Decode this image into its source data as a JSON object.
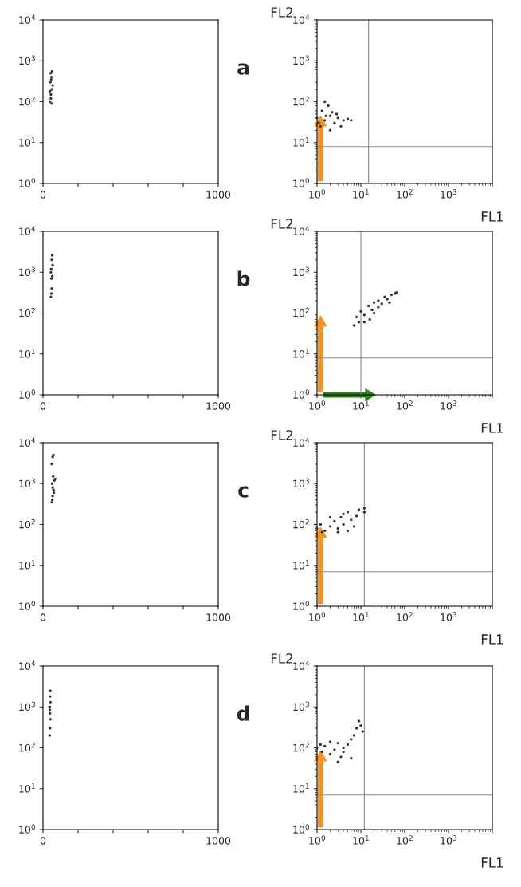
{
  "chart_data": [
    {
      "type": "scatter",
      "xlim": [
        0,
        1000
      ],
      "ylim": [
        1,
        10000
      ],
      "log": "y",
      "marker": "circle",
      "grid": false,
      "xticks": [
        0,
        {
          "value": 200,
          "label": null
        },
        {
          "value": 400,
          "label": null
        },
        {
          "value": 600,
          "label": null
        },
        {
          "value": 800,
          "label": null
        },
        1000
      ],
      "yticks": [
        {
          "value": 1,
          "label": "10$^{0}$"
        },
        {
          "value": 10,
          "label": "10$^{1}$"
        },
        {
          "value": 100,
          "label": "10$^{2}$"
        },
        {
          "value": 1000,
          "label": "10$^{3}$"
        },
        {
          "value": 10000,
          "label": "10$^{4}$"
        }
      ],
      "series": [
        {
          "color": "#2b3a3a",
          "x": [
            40,
            45,
            50,
            42,
            48,
            52,
            45,
            55,
            40,
            50,
            47,
            43
          ],
          "values": [
            100,
            150,
            200,
            300,
            400,
            550,
            120,
            250,
            180,
            90,
            350,
            500
          ]
        }
      ]
    },
    {
      "type": "scatter",
      "xlabel": "FL1",
      "ylabel": "FL2",
      "annotations": [
        "a"
      ],
      "xlim": [
        1,
        10000
      ],
      "ylim": [
        1,
        10000
      ],
      "log": "xy",
      "marker": "circle",
      "grid": false,
      "xticks": [
        {
          "value": 1,
          "label": "10$^{0}$"
        },
        {
          "value": 10,
          "label": "10$^{1}$"
        },
        {
          "value": 100,
          "label": "10$^{2}$"
        },
        {
          "value": 1000,
          "label": "10$^{3}$"
        },
        {
          "value": 10000,
          "label": null
        }
      ],
      "yticks": [
        {
          "value": 1,
          "label": "10$^{0}$"
        },
        {
          "value": 10,
          "label": "10$^{1}$"
        },
        {
          "value": 100,
          "label": "10$^{2}$"
        },
        {
          "value": 1000,
          "label": "10$^{3}$"
        },
        {
          "value": 10000,
          "label": "10$^{4}$"
        }
      ],
      "ref_lines": [
        {
          "axis": "x",
          "value": 15,
          "color": "#888888"
        },
        {
          "axis": "y",
          "value": 8,
          "color": "#888888"
        }
      ],
      "series": [
        {
          "color": "#2b3a3a",
          "x": [
            1,
            1.3,
            1.5,
            2,
            2.5,
            3,
            4,
            5,
            1.2,
            1.8,
            2.2,
            3.5,
            1.5,
            2,
            2.8,
            6,
            1.1,
            1.6
          ],
          "values": [
            40,
            60,
            35,
            45,
            30,
            40,
            35,
            38,
            25,
            80,
            55,
            25,
            100,
            20,
            50,
            35,
            30,
            45
          ]
        }
      ]
    },
    {
      "type": "scatter",
      "xlim": [
        0,
        1000
      ],
      "ylim": [
        1,
        10000
      ],
      "log": "y",
      "marker": "circle",
      "grid": false,
      "xticks": [
        0,
        {
          "value": 200,
          "label": null
        },
        {
          "value": 400,
          "label": null
        },
        {
          "value": 600,
          "label": null
        },
        {
          "value": 800,
          "label": null
        },
        1000
      ],
      "yticks": [
        {
          "value": 1,
          "label": "10$^{0}$"
        },
        {
          "value": 10,
          "label": "10$^{1}$"
        },
        {
          "value": 100,
          "label": "10$^{2}$"
        },
        {
          "value": 1000,
          "label": "10$^{3}$"
        },
        {
          "value": 10000,
          "label": "10$^{4}$"
        }
      ],
      "series": [
        {
          "color": "#2b3a3a",
          "x": [
            45,
            50,
            48,
            45,
            55,
            50,
            52,
            47,
            53,
            48
          ],
          "values": [
            250,
            400,
            700,
            1000,
            1500,
            2000,
            2600,
            1200,
            800,
            300
          ]
        }
      ]
    },
    {
      "type": "scatter",
      "xlabel": "FL1",
      "ylabel": "FL2",
      "annotations": [
        "b"
      ],
      "xlim": [
        1,
        10000
      ],
      "ylim": [
        1,
        10000
      ],
      "log": "xy",
      "marker": "circle",
      "grid": false,
      "xticks": [
        {
          "value": 1,
          "label": "10$^{0}$"
        },
        {
          "value": 10,
          "label": "10$^{1}$"
        },
        {
          "value": 100,
          "label": "10$^{2}$"
        },
        {
          "value": 1000,
          "label": "10$^{3}$"
        },
        {
          "value": 10000,
          "label": null
        }
      ],
      "yticks": [
        {
          "value": 1,
          "label": "10$^{0}$"
        },
        {
          "value": 10,
          "label": "10$^{1}$"
        },
        {
          "value": 100,
          "label": "10$^{2}$"
        },
        {
          "value": 1000,
          "label": "10$^{3}$"
        },
        {
          "value": 10000,
          "label": "10$^{4}$"
        }
      ],
      "ref_lines": [
        {
          "axis": "x",
          "value": 10,
          "color": "#888888"
        },
        {
          "axis": "y",
          "value": 8,
          "color": "#888888"
        }
      ],
      "series": [
        {
          "color": "#2b3a3a",
          "x": [
            7,
            8,
            10,
            12,
            15,
            18,
            20,
            25,
            30,
            35,
            40,
            50,
            60,
            65,
            20,
            12,
            16,
            25,
            45,
            9
          ],
          "values": [
            50,
            80,
            110,
            90,
            150,
            120,
            180,
            200,
            170,
            250,
            220,
            280,
            300,
            320,
            100,
            60,
            70,
            140,
            180,
            60
          ]
        }
      ]
    },
    {
      "type": "scatter",
      "xlim": [
        0,
        1000
      ],
      "ylim": [
        1,
        10000
      ],
      "log": "y",
      "marker": "circle",
      "grid": false,
      "xticks": [
        0,
        {
          "value": 200,
          "label": null
        },
        {
          "value": 400,
          "label": null
        },
        {
          "value": 600,
          "label": null
        },
        {
          "value": 800,
          "label": null
        },
        1000
      ],
      "yticks": [
        {
          "value": 1,
          "label": "10$^{0}$"
        },
        {
          "value": 10,
          "label": "10$^{1}$"
        },
        {
          "value": 100,
          "label": "10$^{2}$"
        },
        {
          "value": 1000,
          "label": "10$^{3}$"
        },
        {
          "value": 10000,
          "label": "10$^{4}$"
        }
      ],
      "series": [
        {
          "color": "#2b3a3a",
          "x": [
            50,
            55,
            60,
            52,
            65,
            58,
            70,
            55,
            62,
            50,
            55,
            60,
            53
          ],
          "values": [
            350,
            500,
            700,
            1000,
            1200,
            1500,
            1300,
            800,
            600,
            3000,
            4500,
            5000,
            400
          ]
        }
      ]
    },
    {
      "type": "scatter",
      "xlabel": "FL1",
      "ylabel": "FL2",
      "annotations": [
        "c"
      ],
      "xlim": [
        1,
        10000
      ],
      "ylim": [
        1,
        10000
      ],
      "log": "xy",
      "marker": "circle",
      "grid": false,
      "xticks": [
        {
          "value": 1,
          "label": "10$^{0}$"
        },
        {
          "value": 10,
          "label": "10$^{1}$"
        },
        {
          "value": 100,
          "label": "10$^{2}$"
        },
        {
          "value": 1000,
          "label": "10$^{3}$"
        },
        {
          "value": 10000,
          "label": null
        }
      ],
      "yticks": [
        {
          "value": 1,
          "label": "10$^{0}$"
        },
        {
          "value": 10,
          "label": "10$^{1}$"
        },
        {
          "value": 100,
          "label": "10$^{2}$"
        },
        {
          "value": 1000,
          "label": "10$^{3}$"
        },
        {
          "value": 10000,
          "label": "10$^{4}$"
        }
      ],
      "ref_lines": [
        {
          "axis": "x",
          "value": 12,
          "color": "#888888"
        },
        {
          "axis": "y",
          "value": 7,
          "color": "#888888"
        }
      ],
      "series": [
        {
          "color": "#2b3a3a",
          "x": [
            1,
            1.2,
            1.5,
            2,
            2.5,
            3,
            3.5,
            4,
            5,
            6,
            7,
            8,
            9,
            1.3,
            2,
            3,
            5,
            12,
            12,
            4
          ],
          "values": [
            80,
            100,
            70,
            90,
            120,
            80,
            150,
            100,
            200,
            130,
            90,
            160,
            230,
            65,
            150,
            65,
            70,
            200,
            250,
            180
          ]
        }
      ]
    },
    {
      "type": "scatter",
      "xlim": [
        0,
        1000
      ],
      "ylim": [
        1,
        10000
      ],
      "log": "y",
      "marker": "circle",
      "grid": false,
      "xticks": [
        0,
        {
          "value": 200,
          "label": null
        },
        {
          "value": 400,
          "label": null
        },
        {
          "value": 600,
          "label": null
        },
        {
          "value": 800,
          "label": null
        },
        1000
      ],
      "yticks": [
        {
          "value": 1,
          "label": "10$^{0}$"
        },
        {
          "value": 10,
          "label": "10$^{1}$"
        },
        {
          "value": 100,
          "label": "10$^{2}$"
        },
        {
          "value": 1000,
          "label": "10$^{3}$"
        },
        {
          "value": 10000,
          "label": "10$^{4}$"
        }
      ],
      "series": [
        {
          "color": "#2b3a3a",
          "x": [
            38,
            40,
            42,
            40,
            38,
            42,
            40,
            41,
            39
          ],
          "values": [
            200,
            300,
            500,
            700,
            1000,
            1300,
            1800,
            2500,
            850
          ]
        }
      ]
    },
    {
      "type": "scatter",
      "xlabel": "FL1",
      "ylabel": "FL2",
      "annotations": [
        "d"
      ],
      "xlim": [
        1,
        10000
      ],
      "ylim": [
        1,
        10000
      ],
      "log": "xy",
      "marker": "circle",
      "grid": false,
      "xticks": [
        {
          "value": 1,
          "label": "10$^{0}$"
        },
        {
          "value": 10,
          "label": "10$^{1}$"
        },
        {
          "value": 100,
          "label": "10$^{2}$"
        },
        {
          "value": 1000,
          "label": "10$^{3}$"
        },
        {
          "value": 10000,
          "label": null
        }
      ],
      "yticks": [
        {
          "value": 1,
          "label": "10$^{0}$"
        },
        {
          "value": 10,
          "label": "10$^{1}$"
        },
        {
          "value": 100,
          "label": "10$^{2}$"
        },
        {
          "value": 1000,
          "label": "10$^{3}$"
        },
        {
          "value": 10000,
          "label": "10$^{4}$"
        }
      ],
      "ref_lines": [
        {
          "axis": "x",
          "value": 12,
          "color": "#888888"
        },
        {
          "axis": "y",
          "value": 7,
          "color": "#888888"
        }
      ],
      "series": [
        {
          "color": "#2b3a3a",
          "x": [
            1,
            1.3,
            1.5,
            2,
            2.5,
            3,
            3.5,
            4,
            5,
            6,
            7,
            8,
            10,
            11,
            9,
            2,
            3,
            4,
            6,
            1.2
          ],
          "values": [
            100,
            80,
            110,
            70,
            90,
            130,
            60,
            100,
            120,
            55,
            200,
            300,
            350,
            250,
            450,
            140,
            45,
            80,
            160,
            120
          ]
        }
      ]
    }
  ]
}
